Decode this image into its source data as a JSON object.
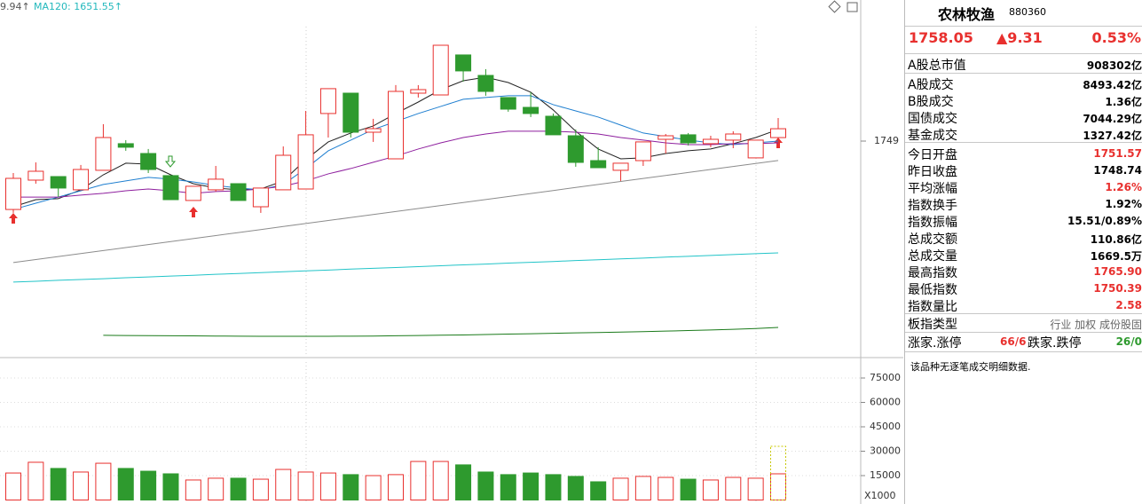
{
  "header": {
    "ma_label_a": "9.94↑",
    "ma_label_b": "MA120: 1651.55↑"
  },
  "kline": {
    "ylim": [
      1590.4,
      1852.35
    ],
    "yticks": [
      1749
    ],
    "up_color": "#e8302e",
    "down_color": "#2e9a2e",
    "candles": [
      {
        "open": 1698.9,
        "high": 1725.6,
        "low": 1696.4,
        "close": 1721.7
      },
      {
        "open": 1720.4,
        "high": 1733.4,
        "low": 1717.8,
        "close": 1726.9
      },
      {
        "open": 1723.0,
        "high": 1723.0,
        "low": 1708.1,
        "close": 1714.6
      },
      {
        "open": 1713.3,
        "high": 1731.5,
        "low": 1713.3,
        "close": 1728.2
      },
      {
        "open": 1727.6,
        "high": 1761.4,
        "low": 1727.6,
        "close": 1751.6
      },
      {
        "open": 1747.1,
        "high": 1749.7,
        "low": 1741.9,
        "close": 1744.5
      },
      {
        "open": 1739.9,
        "high": 1743.2,
        "low": 1725.6,
        "close": 1728.2
      },
      {
        "open": 1723.7,
        "high": 1723.7,
        "low": 1706.1,
        "close": 1706.1
      },
      {
        "open": 1705.5,
        "high": 1715.9,
        "low": 1705.5,
        "close": 1715.9
      },
      {
        "open": 1713.3,
        "high": 1730.8,
        "low": 1712.0,
        "close": 1721.1
      },
      {
        "open": 1717.8,
        "high": 1717.8,
        "low": 1705.5,
        "close": 1705.5
      },
      {
        "open": 1700.9,
        "high": 1714.6,
        "low": 1696.4,
        "close": 1714.6
      },
      {
        "open": 1713.3,
        "high": 1745.1,
        "low": 1713.3,
        "close": 1738.6
      },
      {
        "open": 1713.9,
        "high": 1771.1,
        "low": 1713.9,
        "close": 1753.6
      },
      {
        "open": 1769.2,
        "high": 1787.4,
        "low": 1751.6,
        "close": 1787.4
      },
      {
        "open": 1784.1,
        "high": 1784.1,
        "low": 1751.6,
        "close": 1755.5
      },
      {
        "open": 1755.5,
        "high": 1765.3,
        "low": 1748.4,
        "close": 1758.1
      },
      {
        "open": 1736.0,
        "high": 1790.0,
        "low": 1736.0,
        "close": 1785.4
      },
      {
        "open": 1784.1,
        "high": 1790.0,
        "low": 1780.9,
        "close": 1786.7
      },
      {
        "open": 1782.8,
        "high": 1819.2,
        "low": 1782.8,
        "close": 1819.2
      },
      {
        "open": 1812.1,
        "high": 1812.1,
        "low": 1792.6,
        "close": 1800.4
      },
      {
        "open": 1797.1,
        "high": 1801.7,
        "low": 1782.2,
        "close": 1785.4
      },
      {
        "open": 1780.9,
        "high": 1780.9,
        "low": 1770.5,
        "close": 1772.4
      },
      {
        "open": 1773.7,
        "high": 1784.8,
        "low": 1766.6,
        "close": 1769.2
      },
      {
        "open": 1767.2,
        "high": 1769.2,
        "low": 1753.6,
        "close": 1753.6
      },
      {
        "open": 1752.9,
        "high": 1757.5,
        "low": 1730.2,
        "close": 1733.4
      },
      {
        "open": 1734.7,
        "high": 1744.5,
        "low": 1729.5,
        "close": 1729.5
      },
      {
        "open": 1727.6,
        "high": 1732.8,
        "low": 1719.8,
        "close": 1732.8
      },
      {
        "open": 1734.7,
        "high": 1748.4,
        "low": 1730.8,
        "close": 1748.4
      },
      {
        "open": 1750.3,
        "high": 1754.2,
        "low": 1739.9,
        "close": 1752.9
      },
      {
        "open": 1753.6,
        "high": 1754.9,
        "low": 1745.8,
        "close": 1747.7
      },
      {
        "open": 1747.1,
        "high": 1752.9,
        "low": 1744.5,
        "close": 1750.3
      },
      {
        "open": 1749.7,
        "high": 1756.2,
        "low": 1743.8,
        "close": 1754.2
      },
      {
        "open": 1736.7,
        "high": 1749.7,
        "low": 1736.7,
        "close": 1749.7
      },
      {
        "open": 1751.57,
        "high": 1765.9,
        "low": 1750.39,
        "close": 1758.05
      }
    ],
    "ma": [
      {
        "color": "#222222",
        "values": [
          1700.9,
          1706.1,
          1706.8,
          1713.3,
          1724.3,
          1732.8,
          1732.1,
          1724.3,
          1717.8,
          1714.6,
          1713.3,
          1713.9,
          1719.8,
          1735.4,
          1748.4,
          1754.9,
          1760.1,
          1769.2,
          1777.6,
          1786.7,
          1793.2,
          1795.8,
          1791.9,
          1784.8,
          1771.8,
          1756.2,
          1743.2,
          1736.0,
          1736.7,
          1739.9,
          1741.9,
          1743.2,
          1747.1,
          1751.6,
          1757.5
        ]
      },
      {
        "color": "#1f7fd0",
        "values": [
          1698.9,
          1703.5,
          1708.0,
          1712.6,
          1717.2,
          1719.8,
          1722.4,
          1721.1,
          1719.1,
          1716.5,
          1714.6,
          1713.3,
          1717.2,
          1728.9,
          1741.9,
          1749.7,
          1757.5,
          1763.3,
          1769.2,
          1774.4,
          1779.6,
          1780.9,
          1782.2,
          1782.2,
          1775.7,
          1771.1,
          1766.6,
          1760.7,
          1754.9,
          1752.3,
          1749.7,
          1747.7,
          1746.4,
          1747.7,
          1749.0
        ]
      },
      {
        "color": "#8e1f9e",
        "values": [
          1708.0,
          1708.0,
          1708.0,
          1709.4,
          1710.7,
          1712.6,
          1713.9,
          1712.6,
          1710.7,
          1712.0,
          1712.6,
          1713.9,
          1715.9,
          1719.8,
          1725.0,
          1728.9,
          1733.5,
          1738.0,
          1743.2,
          1747.7,
          1751.6,
          1754.2,
          1756.2,
          1756.2,
          1756.2,
          1755.5,
          1754.2,
          1751.6,
          1749.7,
          1747.7,
          1746.4,
          1746.4,
          1747.1,
          1747.1,
          1747.7
        ]
      },
      {
        "color": "#8c8c8c",
        "values": [
          1660.0,
          1662.2,
          1664.4,
          1666.6,
          1668.8,
          1671.0,
          1673.2,
          1675.4,
          1677.6,
          1679.8,
          1682.0,
          1684.2,
          1686.4,
          1688.6,
          1690.8,
          1693.0,
          1695.2,
          1697.4,
          1699.6,
          1701.8,
          1704.0,
          1706.2,
          1708.4,
          1710.6,
          1712.8,
          1715.0,
          1717.2,
          1719.4,
          1721.6,
          1723.8,
          1726.0,
          1728.2,
          1730.4,
          1732.6,
          1734.8
        ]
      },
      {
        "color": "#22c4c8",
        "values": [
          1645.7,
          1646.3,
          1647.0,
          1647.6,
          1648.2,
          1648.9,
          1649.5,
          1650.1,
          1650.7,
          1651.4,
          1652.0,
          1652.6,
          1653.3,
          1653.9,
          1654.5,
          1655.2,
          1655.8,
          1656.4,
          1657.0,
          1657.7,
          1658.3,
          1658.9,
          1659.6,
          1660.2,
          1660.8,
          1661.5,
          1662.1,
          1662.7,
          1663.3,
          1664.0,
          1664.6,
          1665.2,
          1665.9,
          1666.5,
          1667.1
        ]
      },
      {
        "color": "#1a7a1a",
        "values": [
          null,
          null,
          null,
          null,
          1606.7,
          1606.6,
          1606.5,
          1606.4,
          1606.3,
          1606.2,
          1606.1,
          1606.0,
          1606.0,
          1606.0,
          1606.0,
          1606.1,
          1606.2,
          1606.4,
          1606.6,
          1606.8,
          1607.0,
          1607.3,
          1607.6,
          1607.9,
          1608.2,
          1608.5,
          1608.8,
          1609.1,
          1609.4,
          1609.8,
          1610.2,
          1610.6,
          1611.1,
          1611.7,
          1612.5
        ]
      }
    ]
  },
  "volume": {
    "ylim": [
      0,
      87000
    ],
    "yticks": [
      15000,
      30000,
      45000,
      60000,
      75000
    ],
    "unit": "X1000",
    "values": [
      16600,
      23200,
      19400,
      17200,
      22600,
      19400,
      17700,
      16100,
      12300,
      13400,
      13400,
      12800,
      18800,
      17200,
      16600,
      15600,
      15000,
      15600,
      23700,
      23700,
      21600,
      17200,
      15600,
      16600,
      15600,
      14500,
      11200,
      13400,
      14500,
      13900,
      12800,
      12300,
      13900,
      13400,
      16100
    ],
    "forecast": 33000
  },
  "panel": {
    "name": "农林牧渔",
    "code": "880360",
    "price": "1758.05",
    "change": "▲9.31",
    "change_pct": "0.53%",
    "rows": [
      {
        "label": "A股总市值",
        "value": "908302亿",
        "color": "#000"
      },
      {
        "label": "A股成交",
        "value": "8493.42亿",
        "color": "#000"
      },
      {
        "label": "B股成交",
        "value": "1.36亿",
        "color": "#000"
      },
      {
        "label": "国债成交",
        "value": "7044.29亿",
        "color": "#000"
      },
      {
        "label": "基金成交",
        "value": "1327.42亿",
        "color": "#000"
      },
      {
        "label": "今日开盘",
        "value": "1751.57",
        "color": "#e8302e"
      },
      {
        "label": "昨日收盘",
        "value": "1748.74",
        "color": "#000"
      },
      {
        "label": "平均涨幅",
        "value": "1.26%",
        "color": "#e8302e"
      },
      {
        "label": "指数换手",
        "value": "1.92%",
        "color": "#000"
      },
      {
        "label": "指数振幅",
        "value": "15.51/0.89%",
        "color": "#000"
      },
      {
        "label": "总成交额",
        "value": "110.86亿",
        "color": "#000"
      },
      {
        "label": "总成交量",
        "value": "1669.5万",
        "color": "#000"
      },
      {
        "label": "最高指数",
        "value": "1765.90",
        "color": "#e8302e"
      },
      {
        "label": "最低指数",
        "value": "1750.39",
        "color": "#e8302e"
      },
      {
        "label": "指数量比",
        "value": "2.58",
        "color": "#e8302e"
      },
      {
        "label": "板指类型",
        "value": "行业 加权 成份股固",
        "color": "#666"
      }
    ],
    "breadth": {
      "up_label": "涨家.涨停",
      "up_value": "66/6",
      "down_label": "跌家.跌停",
      "down_value": "26/0"
    },
    "message": "该品种无逐笔成交明细数据."
  }
}
